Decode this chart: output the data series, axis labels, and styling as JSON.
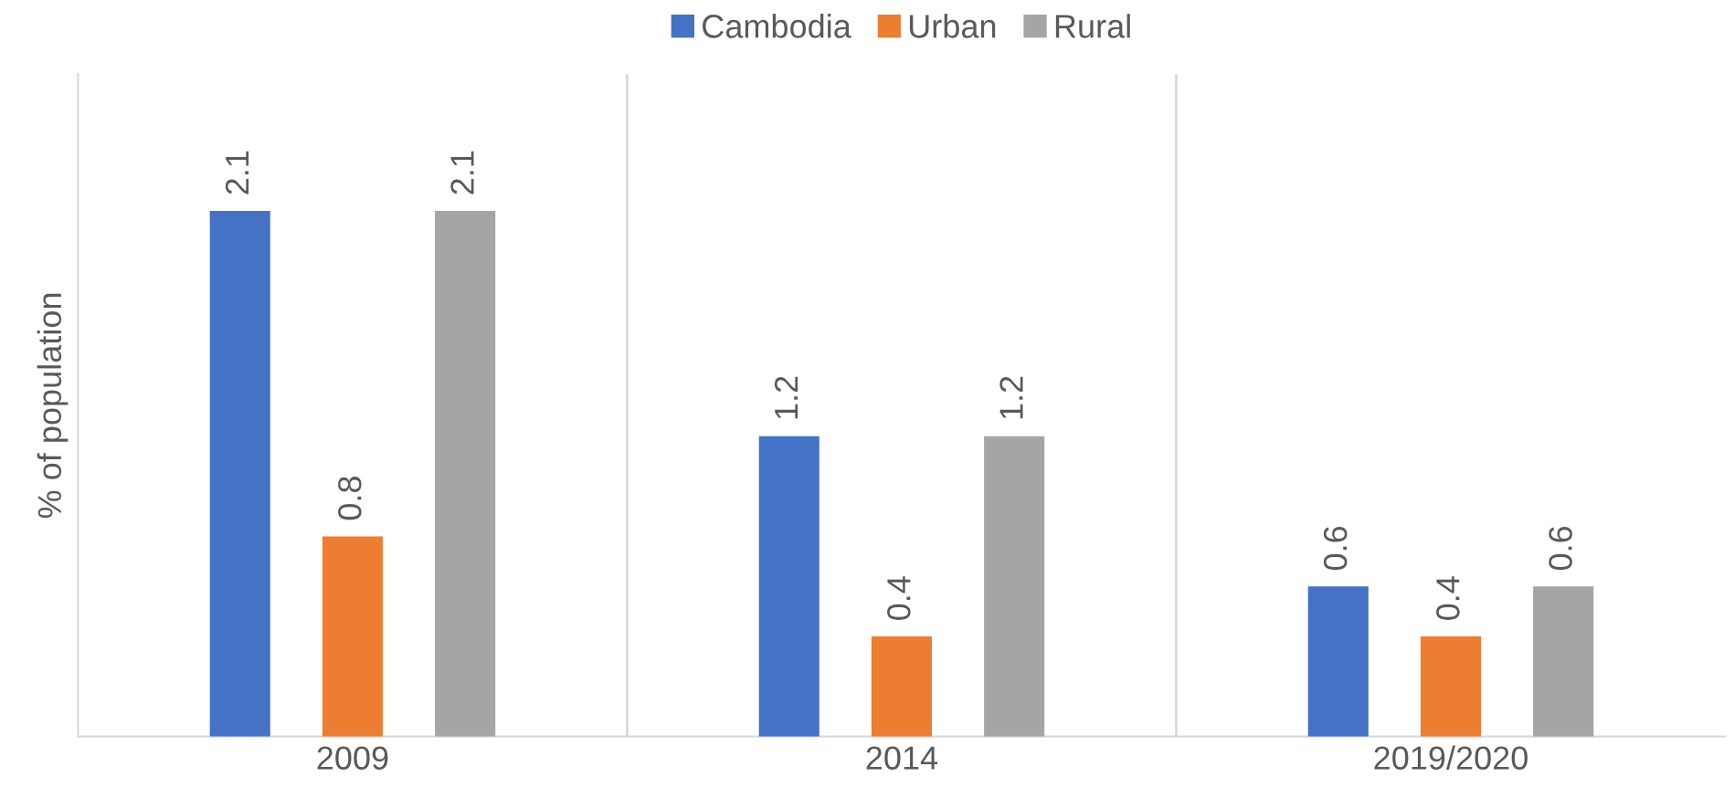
{
  "chart_data": {
    "type": "bar",
    "ylabel": "% of population",
    "categories": [
      "2009",
      "2014",
      "2019/2020"
    ],
    "series": [
      {
        "name": "Cambodia",
        "color": "#4472c4",
        "values": [
          2.1,
          1.2,
          0.6
        ]
      },
      {
        "name": "Urban",
        "color": "#ed7d31",
        "values": [
          0.8,
          0.4,
          0.4
        ]
      },
      {
        "name": "Rural",
        "color": "#a5a5a5",
        "values": [
          2.1,
          1.2,
          0.6
        ]
      }
    ],
    "data_labels": true,
    "legend": "top",
    "grid": "x"
  }
}
